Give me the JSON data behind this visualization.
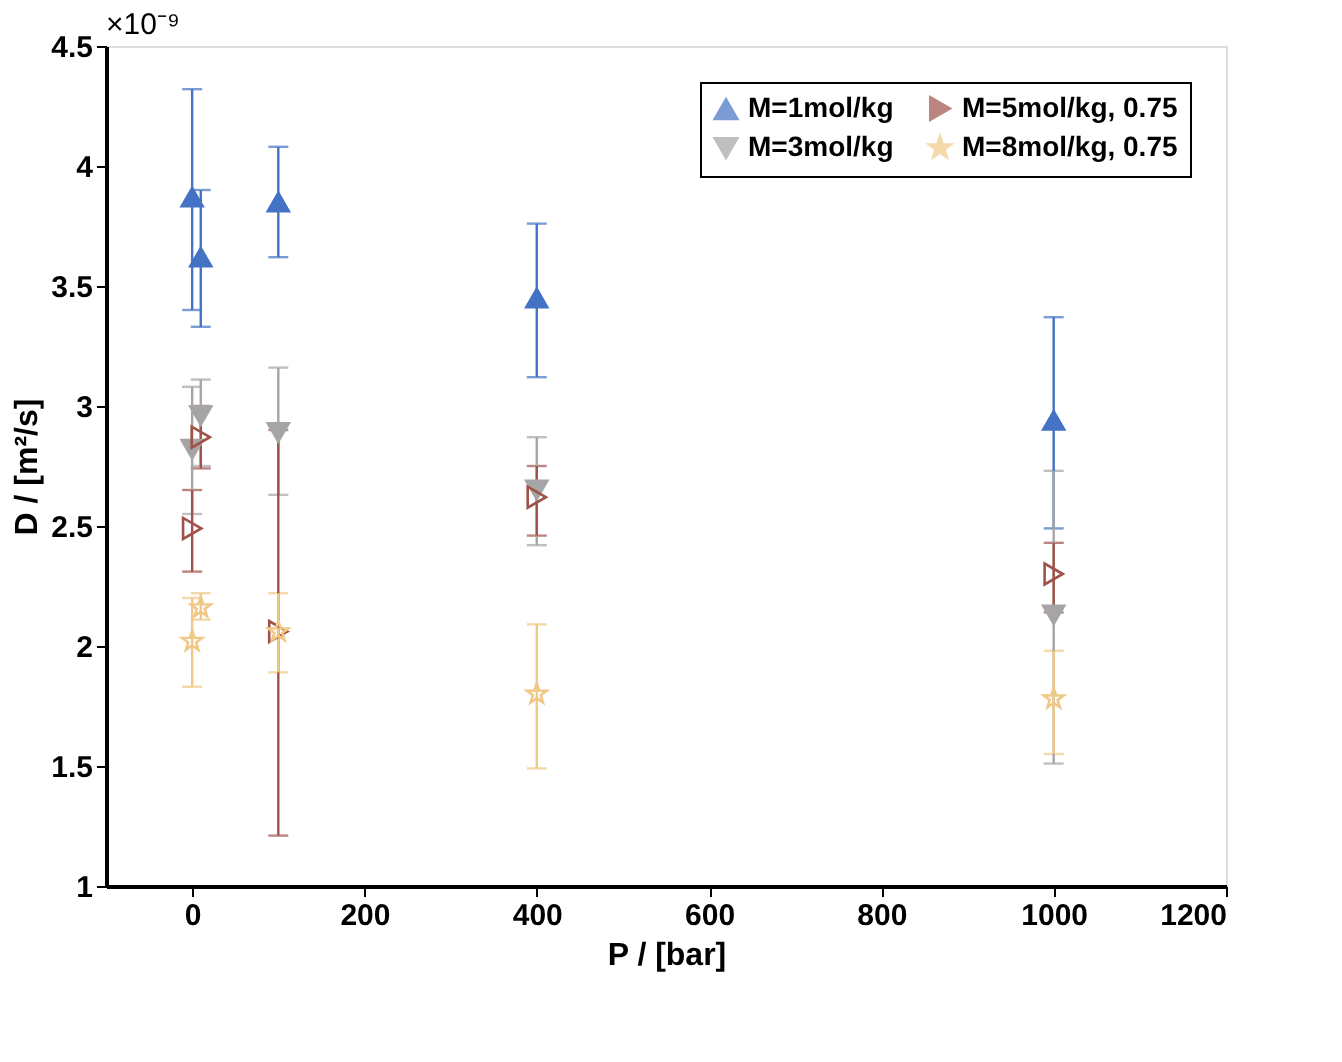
{
  "chart_data": {
    "type": "scatter",
    "xlabel": "P / [bar]",
    "ylabel": "D / [m²/s]",
    "annotations": [
      "×10⁻⁹"
    ],
    "xlim": [
      -100,
      1200
    ],
    "xticks": [
      0,
      200,
      400,
      600,
      800,
      1000,
      1200
    ],
    "ylim": [
      1,
      4.5
    ],
    "yticks": [
      1,
      1.5,
      2,
      2.5,
      3,
      3.5,
      4,
      4.5
    ],
    "grid": false,
    "legend": "top right",
    "series": [
      {
        "name": "M=1mol/kg",
        "color": "#4472c4",
        "marker": "triangle-up",
        "x": [
          0,
          10,
          100,
          400,
          1000
        ],
        "values": [
          3.87,
          3.62,
          3.85,
          3.45,
          2.94
        ],
        "errors": [
          [
            3.4,
            4.32
          ],
          [
            3.33,
            3.9
          ],
          [
            3.62,
            4.08
          ],
          [
            3.12,
            3.76
          ],
          [
            2.49,
            3.37
          ]
        ]
      },
      {
        "name": "M=3mol/kg",
        "color": "#a5a5a5",
        "marker": "triangle-down",
        "x": [
          0,
          10,
          100,
          400,
          1000
        ],
        "values": [
          2.82,
          2.96,
          2.89,
          2.65,
          2.13
        ],
        "errors": [
          [
            2.55,
            3.08
          ],
          [
            2.75,
            3.11
          ],
          [
            2.63,
            3.16
          ],
          [
            2.42,
            2.87
          ],
          [
            1.51,
            2.73
          ]
        ]
      },
      {
        "name": "M=5mol/kg, 0.75",
        "color": "#a0524a",
        "marker": "triangle-right",
        "x": [
          0,
          10,
          100,
          400,
          1000
        ],
        "values": [
          2.49,
          2.87,
          2.06,
          2.62,
          2.3
        ],
        "errors": [
          [
            2.31,
            2.65
          ],
          [
            2.74,
            3.0
          ],
          [
            1.21,
            2.9
          ],
          [
            2.46,
            2.75
          ],
          [
            2.14,
            2.43
          ]
        ]
      },
      {
        "name": "M=8mol/kg, 0.75",
        "color": "#f0c987",
        "marker": "star",
        "x": [
          0,
          10,
          100,
          400,
          1000
        ],
        "values": [
          2.02,
          2.16,
          2.06,
          1.8,
          1.78
        ],
        "errors": [
          [
            1.83,
            2.2
          ],
          [
            2.11,
            2.22
          ],
          [
            1.89,
            2.22
          ],
          [
            1.49,
            2.09
          ],
          [
            1.55,
            1.98
          ]
        ]
      }
    ]
  }
}
